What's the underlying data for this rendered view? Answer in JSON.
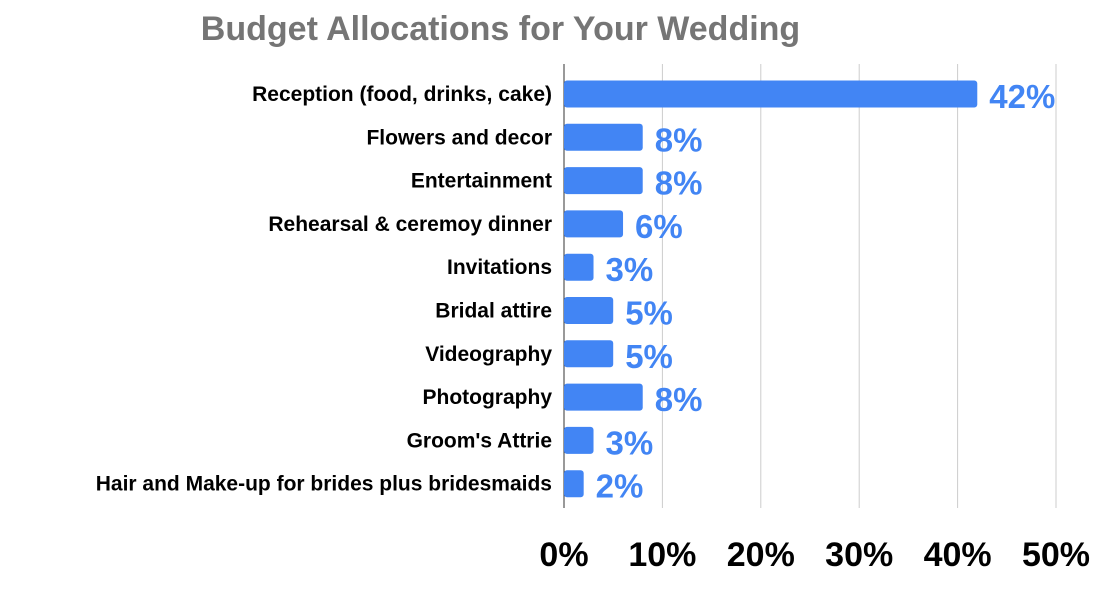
{
  "chart_data": {
    "type": "bar",
    "orientation": "horizontal",
    "title": "Budget Allocations for Your Wedding",
    "xlabel": "",
    "ylabel": "",
    "categories": [
      "Reception (food, drinks, cake)",
      "Flowers and decor",
      "Entertainment",
      "Rehearsal & ceremoy dinner",
      "Invitations",
      "Bridal attire",
      "Videography",
      "Photography",
      "Groom's Attrie",
      "Hair and Make-up for brides plus bridesmaids"
    ],
    "values": [
      42,
      8,
      8,
      6,
      3,
      5,
      5,
      8,
      3,
      2
    ],
    "value_labels": [
      "42%",
      "8%",
      "8%",
      "6%",
      "3%",
      "5%",
      "5%",
      "8%",
      "3%",
      "2%"
    ],
    "xlim": [
      0,
      50
    ],
    "xticks": [
      0,
      10,
      20,
      30,
      40,
      50
    ],
    "xtick_labels": [
      "0%",
      "10%",
      "20%",
      "30%",
      "40%",
      "50%"
    ],
    "grid": "vertical",
    "legend": "none",
    "colors": {
      "bar": "#4285f4",
      "data_label": "#4285f4",
      "title": "#757575",
      "grid": "#cccccc",
      "axis": "#333333"
    }
  }
}
